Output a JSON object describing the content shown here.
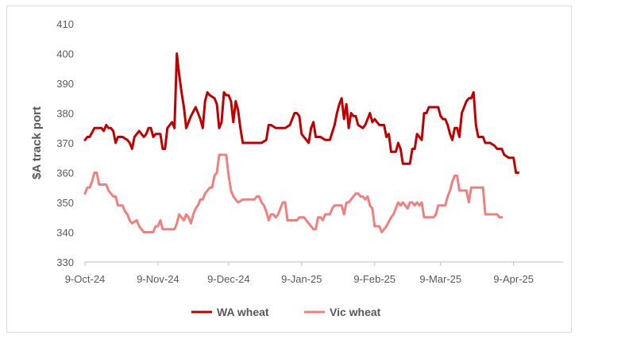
{
  "chart_data": {
    "type": "line",
    "ylabel": "$A track port",
    "xlabel": "",
    "ylim": [
      330,
      410
    ],
    "yticks": [
      330,
      340,
      350,
      360,
      370,
      380,
      390,
      400,
      410
    ],
    "xtick_labels": [
      "9-Oct-24",
      "9-Nov-24",
      "9-Dec-24",
      "9-Jan-25",
      "9-Feb-25",
      "9-Mar-25",
      "9-Apr-25"
    ],
    "xtick_positions": [
      0,
      31,
      61,
      92,
      123,
      151,
      182
    ],
    "x_range": [
      0,
      203
    ],
    "grid": false,
    "legend_position": "bottom",
    "series": [
      {
        "name": "WA wheat",
        "color": "#c00000",
        "points": [
          [
            0,
            371
          ],
          [
            1,
            372
          ],
          [
            2,
            372
          ],
          [
            4,
            375
          ],
          [
            5,
            375
          ],
          [
            7,
            375
          ],
          [
            8,
            374
          ],
          [
            9,
            376
          ],
          [
            10,
            375
          ],
          [
            11,
            375
          ],
          [
            12,
            374
          ],
          [
            13,
            370
          ],
          [
            14,
            372
          ],
          [
            16,
            372
          ],
          [
            18,
            371
          ],
          [
            19,
            370
          ],
          [
            20,
            368
          ],
          [
            21,
            372
          ],
          [
            23,
            374
          ],
          [
            25,
            372
          ],
          [
            26,
            373
          ],
          [
            27,
            375
          ],
          [
            28,
            375
          ],
          [
            29,
            372
          ],
          [
            30,
            373
          ],
          [
            32,
            373
          ],
          [
            33,
            368
          ],
          [
            34,
            368
          ],
          [
            35,
            375
          ],
          [
            36,
            376
          ],
          [
            37,
            377
          ],
          [
            38,
            375
          ],
          [
            39,
            400
          ],
          [
            40,
            393
          ],
          [
            41,
            387
          ],
          [
            42,
            382
          ],
          [
            43,
            375
          ],
          [
            44,
            377
          ],
          [
            45,
            379
          ],
          [
            47,
            382
          ],
          [
            49,
            378
          ],
          [
            50,
            375
          ],
          [
            51,
            384
          ],
          [
            52,
            387
          ],
          [
            53,
            386
          ],
          [
            55,
            385
          ],
          [
            56,
            383
          ],
          [
            57,
            375
          ],
          [
            58,
            377
          ],
          [
            59,
            387
          ],
          [
            60,
            386
          ],
          [
            61,
            386
          ],
          [
            62,
            384
          ],
          [
            63,
            377
          ],
          [
            64,
            384
          ],
          [
            65,
            381
          ],
          [
            66,
            375
          ],
          [
            67,
            370
          ],
          [
            69,
            370
          ],
          [
            71,
            370
          ],
          [
            73,
            370
          ],
          [
            75,
            370
          ],
          [
            77,
            371
          ],
          [
            78,
            376
          ],
          [
            79,
            376
          ],
          [
            81,
            375
          ],
          [
            83,
            375
          ],
          [
            85,
            375
          ],
          [
            87,
            376
          ],
          [
            88,
            378
          ],
          [
            89,
            380
          ],
          [
            90,
            380
          ],
          [
            91,
            379
          ],
          [
            92,
            373
          ],
          [
            94,
            371
          ],
          [
            95,
            370
          ],
          [
            96,
            375
          ],
          [
            97,
            377
          ],
          [
            98,
            372
          ],
          [
            100,
            372
          ],
          [
            102,
            371
          ],
          [
            104,
            371
          ],
          [
            106,
            376
          ],
          [
            107,
            380
          ],
          [
            108,
            383
          ],
          [
            109,
            385
          ],
          [
            110,
            378
          ],
          [
            111,
            383
          ],
          [
            112,
            375
          ],
          [
            113,
            380
          ],
          [
            114,
            379
          ],
          [
            115,
            379
          ],
          [
            116,
            376
          ],
          [
            118,
            375
          ],
          [
            119,
            376
          ],
          [
            120,
            378
          ],
          [
            121,
            380
          ],
          [
            122,
            377
          ],
          [
            123,
            378
          ],
          [
            124,
            377
          ],
          [
            125,
            376
          ],
          [
            127,
            376
          ],
          [
            128,
            372
          ],
          [
            129,
            373
          ],
          [
            130,
            367
          ],
          [
            131,
            367
          ],
          [
            132,
            367
          ],
          [
            133,
            370
          ],
          [
            134,
            368
          ],
          [
            135,
            363
          ],
          [
            136,
            363
          ],
          [
            137,
            363
          ],
          [
            138,
            363
          ],
          [
            139,
            368
          ],
          [
            140,
            368
          ],
          [
            141,
            373
          ],
          [
            143,
            371
          ],
          [
            144,
            380
          ],
          [
            145,
            380
          ],
          [
            146,
            382
          ],
          [
            148,
            382
          ],
          [
            150,
            382
          ],
          [
            151,
            379
          ],
          [
            152,
            378
          ],
          [
            153,
            378
          ],
          [
            154,
            376
          ],
          [
            155,
            373
          ],
          [
            156,
            371
          ],
          [
            157,
            375
          ],
          [
            158,
            375
          ],
          [
            159,
            372
          ],
          [
            160,
            380
          ],
          [
            161,
            382
          ],
          [
            162,
            384
          ],
          [
            163,
            385
          ],
          [
            164,
            385
          ],
          [
            165,
            387
          ],
          [
            166,
            376
          ],
          [
            167,
            372
          ],
          [
            168,
            372
          ],
          [
            169,
            372
          ],
          [
            170,
            370
          ],
          [
            172,
            370
          ],
          [
            174,
            369
          ],
          [
            175,
            368
          ],
          [
            177,
            368
          ],
          [
            178,
            366
          ],
          [
            180,
            365
          ],
          [
            182,
            365
          ],
          [
            183,
            360
          ],
          [
            184,
            360
          ]
        ]
      },
      {
        "name": "Vic wheat",
        "color": "#f08080",
        "points": [
          [
            0,
            353
          ],
          [
            1,
            355
          ],
          [
            2,
            355
          ],
          [
            3,
            357
          ],
          [
            4,
            360
          ],
          [
            5,
            360
          ],
          [
            6,
            356
          ],
          [
            8,
            356
          ],
          [
            9,
            356
          ],
          [
            10,
            354
          ],
          [
            12,
            352
          ],
          [
            13,
            352
          ],
          [
            14,
            349
          ],
          [
            16,
            349
          ],
          [
            17,
            347
          ],
          [
            18,
            346
          ],
          [
            19,
            344
          ],
          [
            20,
            343
          ],
          [
            22,
            344
          ],
          [
            23,
            342
          ],
          [
            24,
            341
          ],
          [
            25,
            340
          ],
          [
            27,
            340
          ],
          [
            29,
            340
          ],
          [
            30,
            342
          ],
          [
            31,
            342
          ],
          [
            32,
            344
          ],
          [
            33,
            341
          ],
          [
            35,
            341
          ],
          [
            37,
            341
          ],
          [
            38,
            341
          ],
          [
            39,
            343
          ],
          [
            40,
            346
          ],
          [
            41,
            345
          ],
          [
            42,
            344
          ],
          [
            43,
            346
          ],
          [
            44,
            345
          ],
          [
            45,
            343
          ],
          [
            46,
            346
          ],
          [
            47,
            348
          ],
          [
            48,
            349
          ],
          [
            49,
            351
          ],
          [
            50,
            351
          ],
          [
            51,
            353
          ],
          [
            52,
            354
          ],
          [
            53,
            355
          ],
          [
            54,
            355
          ],
          [
            55,
            359
          ],
          [
            56,
            360
          ],
          [
            57,
            366
          ],
          [
            59,
            366
          ],
          [
            60,
            366
          ],
          [
            61,
            359
          ],
          [
            62,
            354
          ],
          [
            63,
            352
          ],
          [
            64,
            351
          ],
          [
            65,
            350
          ],
          [
            67,
            351
          ],
          [
            69,
            351
          ],
          [
            71,
            351
          ],
          [
            72,
            351
          ],
          [
            73,
            352
          ],
          [
            74,
            352
          ],
          [
            75,
            350
          ],
          [
            76,
            349
          ],
          [
            77,
            347
          ],
          [
            78,
            344
          ],
          [
            79,
            346
          ],
          [
            80,
            346
          ],
          [
            81,
            345
          ],
          [
            82,
            346
          ],
          [
            83,
            348
          ],
          [
            84,
            350
          ],
          [
            85,
            350
          ],
          [
            86,
            344
          ],
          [
            88,
            344
          ],
          [
            90,
            344
          ],
          [
            91,
            345
          ],
          [
            93,
            345
          ],
          [
            95,
            343
          ],
          [
            96,
            342
          ],
          [
            97,
            341
          ],
          [
            98,
            341
          ],
          [
            99,
            345
          ],
          [
            100,
            345
          ],
          [
            101,
            344
          ],
          [
            102,
            346
          ],
          [
            104,
            346
          ],
          [
            105,
            348
          ],
          [
            106,
            349
          ],
          [
            108,
            349
          ],
          [
            109,
            349
          ],
          [
            110,
            346
          ],
          [
            111,
            350
          ],
          [
            112,
            350
          ],
          [
            113,
            351
          ],
          [
            114,
            352
          ],
          [
            115,
            353
          ],
          [
            116,
            353
          ],
          [
            117,
            352
          ],
          [
            118,
            352
          ],
          [
            119,
            351
          ],
          [
            120,
            352
          ],
          [
            121,
            349
          ],
          [
            122,
            348
          ],
          [
            123,
            342
          ],
          [
            125,
            342
          ],
          [
            126,
            340
          ],
          [
            128,
            342
          ],
          [
            130,
            345
          ],
          [
            131,
            346
          ],
          [
            132,
            348
          ],
          [
            133,
            350
          ],
          [
            134,
            349
          ],
          [
            135,
            350
          ],
          [
            136,
            349
          ],
          [
            137,
            348
          ],
          [
            138,
            350
          ],
          [
            139,
            350
          ],
          [
            140,
            349
          ],
          [
            141,
            350
          ],
          [
            142,
            349
          ],
          [
            143,
            350
          ],
          [
            144,
            345
          ],
          [
            146,
            345
          ],
          [
            148,
            345
          ],
          [
            149,
            346
          ],
          [
            150,
            349
          ],
          [
            152,
            349
          ],
          [
            153,
            349
          ],
          [
            154,
            352
          ],
          [
            155,
            354
          ],
          [
            156,
            357
          ],
          [
            157,
            359
          ],
          [
            158,
            359
          ],
          [
            159,
            354
          ],
          [
            160,
            354
          ],
          [
            161,
            354
          ],
          [
            162,
            354
          ],
          [
            163,
            350
          ],
          [
            164,
            355
          ],
          [
            166,
            355
          ],
          [
            168,
            355
          ],
          [
            169,
            355
          ],
          [
            170,
            346
          ],
          [
            172,
            346
          ],
          [
            174,
            346
          ],
          [
            175,
            346
          ],
          [
            176,
            345
          ],
          [
            177,
            345
          ]
        ]
      }
    ]
  }
}
